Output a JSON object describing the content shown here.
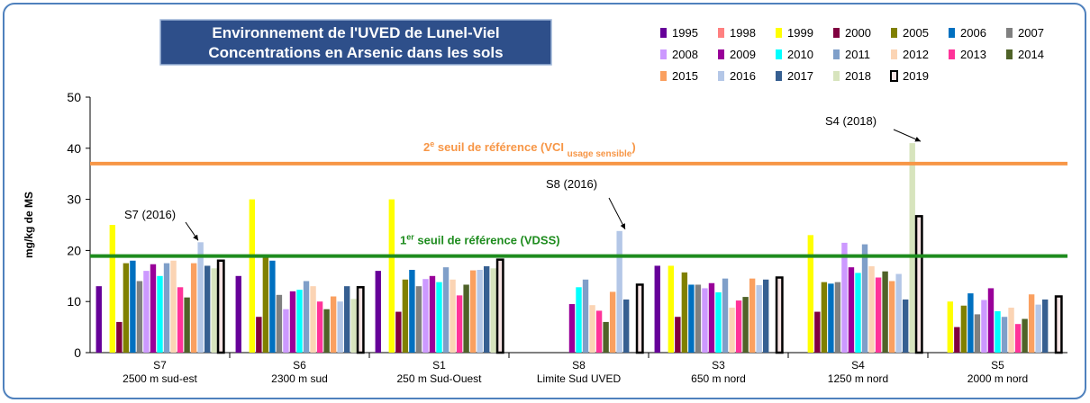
{
  "chart_data": {
    "type": "bar",
    "title": [
      "Environnement de l'UVED de Lunel-Viel",
      "Concentrations en Arsenic dans les sols"
    ],
    "ylabel": "mg/kg de MS",
    "categories": [
      [
        "S7",
        "2500 m sud-est"
      ],
      [
        "S6",
        "2300 m sud"
      ],
      [
        "S1",
        "250 m Sud-Ouest"
      ],
      [
        "S8",
        "Limite Sud UVED"
      ],
      [
        "S3",
        "650 m nord"
      ],
      [
        "S4",
        "1250 m nord"
      ],
      [
        "S5",
        "2000 m nord"
      ]
    ],
    "ylim": [
      0,
      50
    ],
    "yticks": [
      0,
      10,
      20,
      30,
      40,
      50
    ],
    "series": [
      {
        "name": "1995",
        "color": "#660099",
        "values": [
          13,
          15,
          16,
          null,
          17,
          null,
          null
        ]
      },
      {
        "name": "1998",
        "color": "#FF8080",
        "values": [
          null,
          null,
          null,
          null,
          null,
          null,
          null
        ]
      },
      {
        "name": "1999",
        "color": "#FFFF00",
        "values": [
          25,
          30,
          30,
          null,
          17,
          23,
          10
        ]
      },
      {
        "name": "2000",
        "color": "#800040",
        "values": [
          6,
          7,
          8,
          null,
          7,
          8,
          5
        ]
      },
      {
        "name": "2005",
        "color": "#808000",
        "values": [
          17.5,
          19,
          14.3,
          null,
          15.7,
          13.8,
          9.2
        ]
      },
      {
        "name": "2006",
        "color": "#0070C0",
        "values": [
          18,
          18,
          16.2,
          null,
          13.3,
          13.5,
          11.6
        ]
      },
      {
        "name": "2007",
        "color": "#808080",
        "values": [
          14,
          11.3,
          13,
          null,
          13.3,
          13.8,
          7.5
        ]
      },
      {
        "name": "2008",
        "color": "#CC99FF",
        "values": [
          16,
          8.5,
          14.4,
          null,
          12.6,
          21.5,
          10.3
        ]
      },
      {
        "name": "2009",
        "color": "#990099",
        "values": [
          17.3,
          12,
          15,
          9.5,
          13.6,
          16.7,
          12.6
        ]
      },
      {
        "name": "2010",
        "color": "#00FFFF",
        "values": [
          15,
          12.3,
          13.8,
          12.8,
          11.8,
          15.6,
          8.1
        ]
      },
      {
        "name": "2011",
        "color": "#7F9FC9",
        "values": [
          17.5,
          14,
          16.7,
          14.3,
          14.5,
          21.2,
          7
        ]
      },
      {
        "name": "2012",
        "color": "#FBD4B4",
        "values": [
          18,
          13,
          14.3,
          9.3,
          8.8,
          16.9,
          8.8
        ]
      },
      {
        "name": "2013",
        "color": "#FF3399",
        "values": [
          12.8,
          10,
          11.2,
          8.2,
          10.2,
          14.7,
          5.6
        ]
      },
      {
        "name": "2014",
        "color": "#4F6228",
        "values": [
          10.8,
          8.5,
          13.3,
          6,
          10.9,
          15.9,
          6.6
        ]
      },
      {
        "name": "2015",
        "color": "#FAA060",
        "values": [
          17.5,
          11,
          16.1,
          11.9,
          14.5,
          14,
          11.4
        ]
      },
      {
        "name": "2016",
        "color": "#B4C7E7",
        "values": [
          21.6,
          10,
          16.2,
          23.8,
          13.2,
          15.4,
          9.4
        ]
      },
      {
        "name": "2017",
        "color": "#365F91",
        "values": [
          17,
          13,
          16.9,
          10.4,
          14.3,
          10.4,
          10.4
        ]
      },
      {
        "name": "2018",
        "color": "#D7E4BD",
        "values": [
          16.5,
          10.5,
          16.5,
          null,
          null,
          41,
          null
        ]
      },
      {
        "name": "2019",
        "color": "#F8E4E4",
        "values": [
          18,
          12.8,
          18.2,
          13.3,
          14.7,
          26.7,
          11
        ]
      }
    ],
    "reference_lines": [
      {
        "value": 37,
        "color": "#F79646",
        "label": [
          "2",
          "e",
          " seuil de référence (VCI ",
          "usage sensible",
          ")"
        ]
      },
      {
        "value": 18.9,
        "color": "#1E8C1E",
        "label": [
          "1",
          "er",
          " seuil de référence (VDSS)"
        ]
      }
    ],
    "annotations": [
      "S7 (2016)",
      "S8 (2016)",
      "S4 (2018)"
    ]
  }
}
